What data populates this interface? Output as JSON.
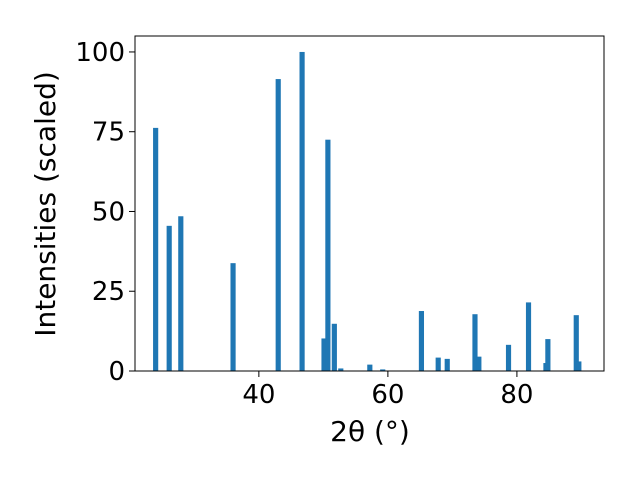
{
  "chart_data": {
    "type": "bar",
    "title": "",
    "xlabel": "2θ (°)",
    "ylabel": "Intensities (scaled)",
    "xlim": [
      20.8,
      93.5
    ],
    "ylim": [
      0,
      105
    ],
    "x_ticks": [
      40,
      60,
      80
    ],
    "y_ticks": [
      0,
      25,
      50,
      75,
      100
    ],
    "x_tick_labels": [
      "40",
      "60",
      "80"
    ],
    "y_tick_labels": [
      "0",
      "25",
      "50",
      "75",
      "100"
    ],
    "bar_width": 0.8,
    "bar_color": "#1f77b4",
    "grid": false,
    "x": [
      24.0,
      26.1,
      27.9,
      36.0,
      43.0,
      46.7,
      50.1,
      50.7,
      51.7,
      52.7,
      57.2,
      59.2,
      65.2,
      67.8,
      69.2,
      73.5,
      74.1,
      78.7,
      81.8,
      84.5,
      84.8,
      89.2,
      89.6
    ],
    "values": [
      76.2,
      45.5,
      48.5,
      33.8,
      91.5,
      100.0,
      10.2,
      72.5,
      14.8,
      0.8,
      2.0,
      0.5,
      18.8,
      4.2,
      3.8,
      17.8,
      4.5,
      8.2,
      21.5,
      2.5,
      10.0,
      17.5,
      3.0
    ]
  }
}
